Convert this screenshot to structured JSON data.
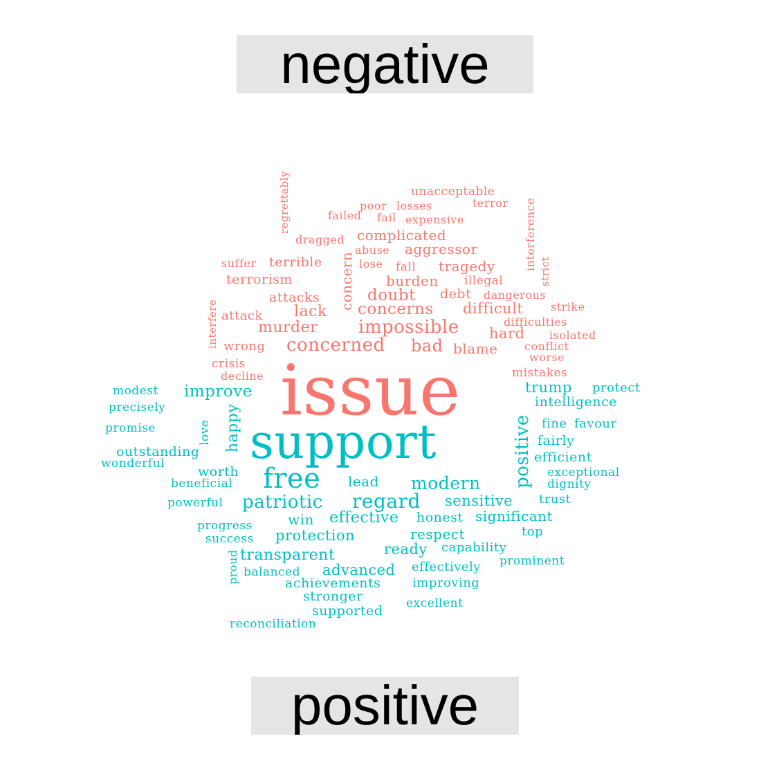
{
  "colors": {
    "negative": "#F8766D",
    "positive": "#00BFC4",
    "label_bg": "#e5e5e5"
  },
  "chart_data": {
    "type": "wordcloud",
    "title": "",
    "groups": [
      {
        "name": "negative",
        "color": "#F8766D",
        "words": [
          "issue",
          "concerned",
          "impossible",
          "concerns",
          "bad",
          "doubt",
          "murder",
          "lack",
          "concern",
          "complicated",
          "aggressor",
          "tragedy",
          "burden",
          "difficult",
          "hard",
          "blame",
          "terrible",
          "terrorism",
          "attacks",
          "debt",
          "illegal",
          "wrong",
          "attack",
          "suffer",
          "lose",
          "fall",
          "abuse",
          "dragged",
          "failed",
          "fail",
          "poor",
          "losses",
          "expensive",
          "unacceptable",
          "terror",
          "regrettably",
          "interference",
          "strict",
          "dangerous",
          "strike",
          "difficulties",
          "isolated",
          "conflict",
          "worse",
          "mistakes",
          "interfere",
          "crisis",
          "decline"
        ]
      },
      {
        "name": "positive",
        "color": "#00BFC4",
        "words": [
          "support",
          "free",
          "positive",
          "regard",
          "patriotic",
          "modern",
          "improve",
          "happy",
          "trump",
          "intelligence",
          "protect",
          "modest",
          "precisely",
          "promise",
          "love",
          "fine",
          "favour",
          "fairly",
          "efficient",
          "outstanding",
          "wonderful",
          "worth",
          "lead",
          "exceptional",
          "beneficial",
          "dignity",
          "powerful",
          "sensitive",
          "trust",
          "honest",
          "effective",
          "win",
          "significant",
          "progress",
          "protection",
          "respect",
          "top",
          "success",
          "transparent",
          "ready",
          "capability",
          "proud",
          "balanced",
          "advanced",
          "effectively",
          "prominent",
          "achievements",
          "improving",
          "stronger",
          "excellent",
          "supported",
          "reconciliation"
        ]
      }
    ]
  }
}
